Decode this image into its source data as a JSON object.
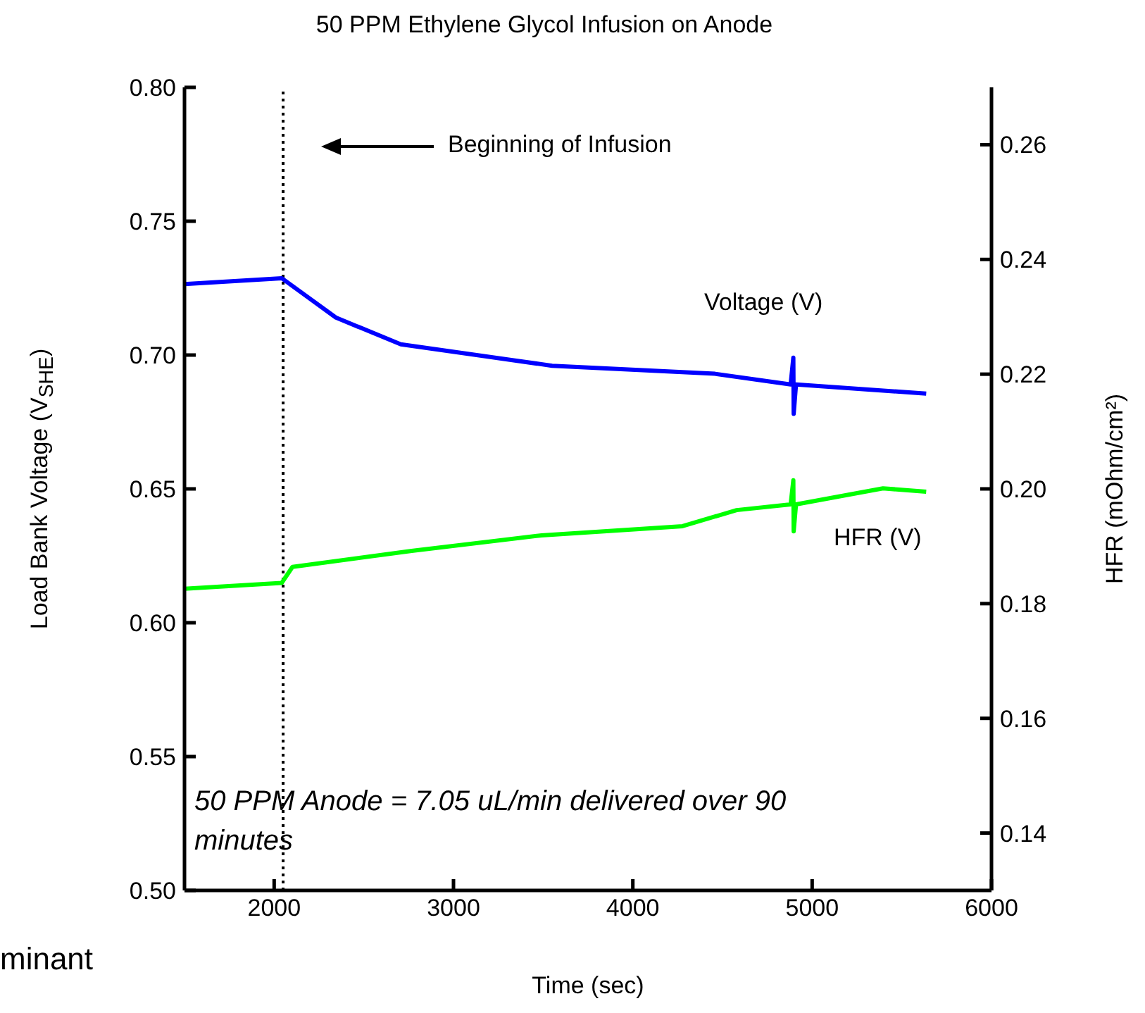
{
  "chart_data": {
    "type": "line",
    "title": "50 PPM Ethylene Glycol Infusion on Anode",
    "xlabel": "Time (sec)",
    "ylabel": "Load Bank Voltage (V$_{SHE}$)",
    "y2label": "HFR (mOhm/cm²)",
    "xlim": [
      1500,
      6000
    ],
    "xticks": [
      2000,
      3000,
      4000,
      5000,
      6000
    ],
    "ylim": [
      0.5,
      0.8
    ],
    "yticks": [
      {
        "value": 0.5,
        "label": "0.50"
      },
      {
        "value": 0.55,
        "label": "0.55"
      },
      {
        "value": 0.6,
        "label": "0.60"
      },
      {
        "value": 0.65,
        "label": "0.65"
      },
      {
        "value": 0.7,
        "label": "0.70"
      },
      {
        "value": 0.75,
        "label": "0.75"
      },
      {
        "value": 0.8,
        "label": "0.80"
      }
    ],
    "y2lim": [
      0.13,
      0.27
    ],
    "y2ticks": [
      {
        "value": 0.14,
        "label": "0.14"
      },
      {
        "value": 0.16,
        "label": "0.16"
      },
      {
        "value": 0.18,
        "label": "0.18"
      },
      {
        "value": 0.2,
        "label": "0.20"
      },
      {
        "value": 0.22,
        "label": "0.22"
      },
      {
        "value": 0.24,
        "label": "0.24"
      },
      {
        "value": 0.26,
        "label": "0.26"
      }
    ],
    "series": [
      {
        "name": "Voltage (V)",
        "color": "#0000ff",
        "x": [
          1500,
          2042,
          2344,
          2706,
          3550,
          4458,
          4880,
          4895,
          4897,
          4910,
          5636
        ],
        "values": [
          0.7265,
          0.7287,
          0.714,
          0.704,
          0.696,
          0.693,
          0.689,
          0.699,
          0.678,
          0.689,
          0.6856
        ]
      },
      {
        "name": "HFR (V)",
        "color": "#00ff00",
        "axis": "y2",
        "x": [
          1500,
          2042,
          2102,
          2767,
          3492,
          4277,
          4579,
          4880,
          4895,
          4897,
          4910,
          5395,
          5636
        ],
        "values": [
          0.1826,
          0.1836,
          0.1864,
          0.1892,
          0.1919,
          0.1935,
          0.1963,
          0.1973,
          0.2015,
          0.1926,
          0.1973,
          0.2001,
          0.1995
        ]
      }
    ],
    "ref_lines": [
      {
        "axis": "x",
        "value": 2050,
        "color": "#000000",
        "line_style": "dotted"
      }
    ],
    "annotations": [
      "Beginning of Infusion",
      "50 PPM Anode = 7.05 uL/min delivered over 90 minutes",
      "minant"
    ],
    "legend": false,
    "grid": false,
    "marker": "none",
    "line_style": "solid"
  }
}
